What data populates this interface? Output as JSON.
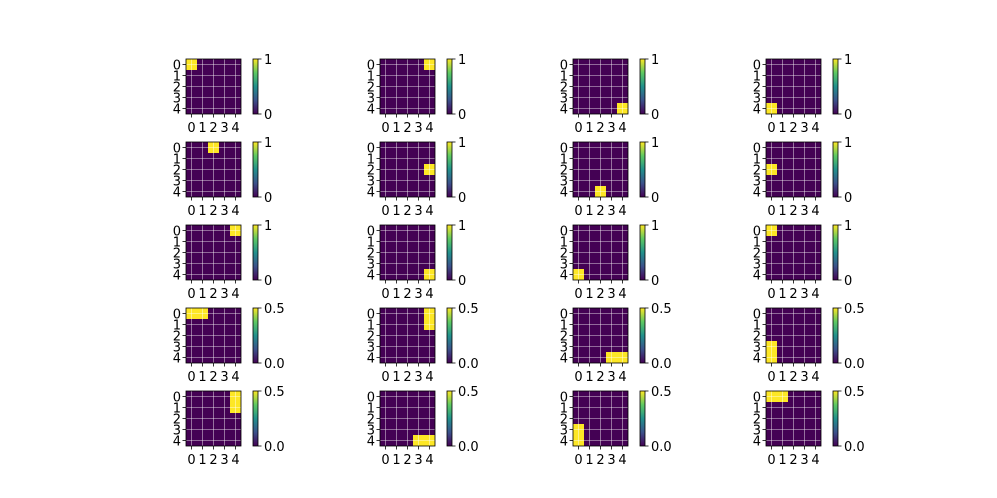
{
  "chart_data": {
    "type": "heatmap",
    "layout": {
      "rows": 5,
      "cols": 4
    },
    "grid": true,
    "colormap": "viridis",
    "colors": {
      "low": "#440154",
      "high": "#fde725",
      "grid_line": "#ffffff"
    },
    "x_ticks": [
      "0",
      "1",
      "2",
      "3",
      "4"
    ],
    "y_ticks": [
      "0",
      "1",
      "2",
      "3",
      "4"
    ],
    "panels": [
      {
        "cells": [
          [
            0,
            0
          ]
        ],
        "vmin": "0",
        "vmax": "1"
      },
      {
        "cells": [
          [
            0,
            4
          ]
        ],
        "vmin": "0",
        "vmax": "1"
      },
      {
        "cells": [
          [
            4,
            4
          ]
        ],
        "vmin": "0",
        "vmax": "1"
      },
      {
        "cells": [
          [
            4,
            0
          ]
        ],
        "vmin": "0",
        "vmax": "1"
      },
      {
        "cells": [
          [
            0,
            2
          ]
        ],
        "vmin": "0",
        "vmax": "1"
      },
      {
        "cells": [
          [
            2,
            4
          ]
        ],
        "vmin": "0",
        "vmax": "1"
      },
      {
        "cells": [
          [
            4,
            2
          ]
        ],
        "vmin": "0",
        "vmax": "1"
      },
      {
        "cells": [
          [
            2,
            0
          ]
        ],
        "vmin": "0",
        "vmax": "1"
      },
      {
        "cells": [
          [
            0,
            4
          ]
        ],
        "vmin": "0",
        "vmax": "1"
      },
      {
        "cells": [
          [
            4,
            4
          ]
        ],
        "vmin": "0",
        "vmax": "1"
      },
      {
        "cells": [
          [
            4,
            0
          ]
        ],
        "vmin": "0",
        "vmax": "1"
      },
      {
        "cells": [
          [
            0,
            0
          ]
        ],
        "vmin": "0",
        "vmax": "1"
      },
      {
        "cells": [
          [
            0,
            0
          ],
          [
            0,
            1
          ]
        ],
        "vmin": "0.0",
        "vmax": "0.5"
      },
      {
        "cells": [
          [
            0,
            4
          ],
          [
            1,
            4
          ]
        ],
        "vmin": "0.0",
        "vmax": "0.5"
      },
      {
        "cells": [
          [
            4,
            3
          ],
          [
            4,
            4
          ]
        ],
        "vmin": "0.0",
        "vmax": "0.5"
      },
      {
        "cells": [
          [
            3,
            0
          ],
          [
            4,
            0
          ]
        ],
        "vmin": "0.0",
        "vmax": "0.5"
      },
      {
        "cells": [
          [
            0,
            4
          ],
          [
            1,
            4
          ]
        ],
        "vmin": "0.0",
        "vmax": "0.5"
      },
      {
        "cells": [
          [
            4,
            3
          ],
          [
            4,
            4
          ]
        ],
        "vmin": "0.0",
        "vmax": "0.5"
      },
      {
        "cells": [
          [
            3,
            0
          ],
          [
            4,
            0
          ]
        ],
        "vmin": "0.0",
        "vmax": "0.5"
      },
      {
        "cells": [
          [
            0,
            0
          ],
          [
            0,
            1
          ]
        ],
        "vmin": "0.0",
        "vmax": "0.5"
      }
    ]
  }
}
